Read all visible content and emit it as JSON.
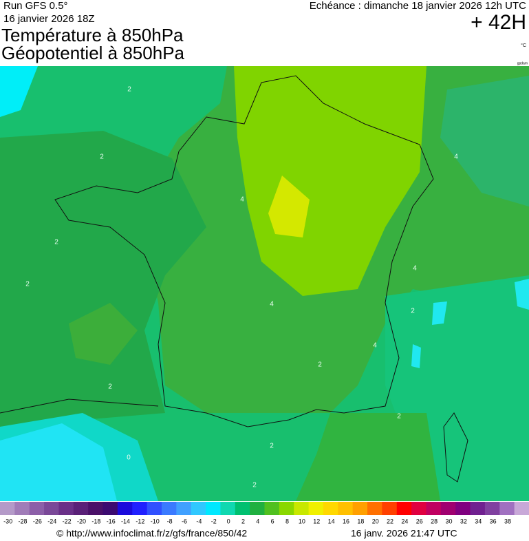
{
  "header": {
    "run": "Run GFS 0.5°",
    "date": "16 janvier 2026 18Z",
    "title1": "Température à 850hPa",
    "title2": "Géopotentiel à 850hPa",
    "valid": "Echéance : dimanche 18 janvier 2026 12h UTC",
    "lead": "+ 42H",
    "unit": "°C",
    "unit2": "gpdam"
  },
  "map": {
    "contour_labels": [
      "2",
      "2",
      "2",
      "2",
      "2",
      "2",
      "2",
      "2",
      "2",
      "2",
      "4",
      "4",
      "4",
      "4",
      "4",
      "0"
    ]
  },
  "colorbar": {
    "labels": [
      "-30",
      "-28",
      "-26",
      "-24",
      "-22",
      "-20",
      "-18",
      "-16",
      "-14",
      "-12",
      "-10",
      "-8",
      "-6",
      "-4",
      "-2",
      "0",
      "2",
      "4",
      "6",
      "8",
      "10",
      "12",
      "14",
      "16",
      "18",
      "20",
      "22",
      "24",
      "26",
      "28",
      "30",
      "32",
      "34",
      "36",
      "38"
    ],
    "colors": [
      "#b49ac8",
      "#a07cb8",
      "#8c5fa8",
      "#7a4898",
      "#6a3088",
      "#5a2078",
      "#4a1068",
      "#3c0a70",
      "#1a0adc",
      "#2020ff",
      "#3050ff",
      "#3a7aff",
      "#40a0ff",
      "#30c8ff",
      "#00e8ff",
      "#10d8b0",
      "#00c070",
      "#20b040",
      "#50c020",
      "#8ad800",
      "#c8e800",
      "#f0f000",
      "#ffd800",
      "#ffc000",
      "#ffa000",
      "#ff7000",
      "#ff4000",
      "#ff0000",
      "#e00040",
      "#c00060",
      "#a00070",
      "#800080",
      "#702090",
      "#8040a0",
      "#a070c0",
      "#c8a8d8"
    ]
  },
  "footer": {
    "source": "© http://www.infoclimat.fr/z/gfs/france/850/42",
    "issued": "16 janv. 2026 21:47 UTC"
  }
}
